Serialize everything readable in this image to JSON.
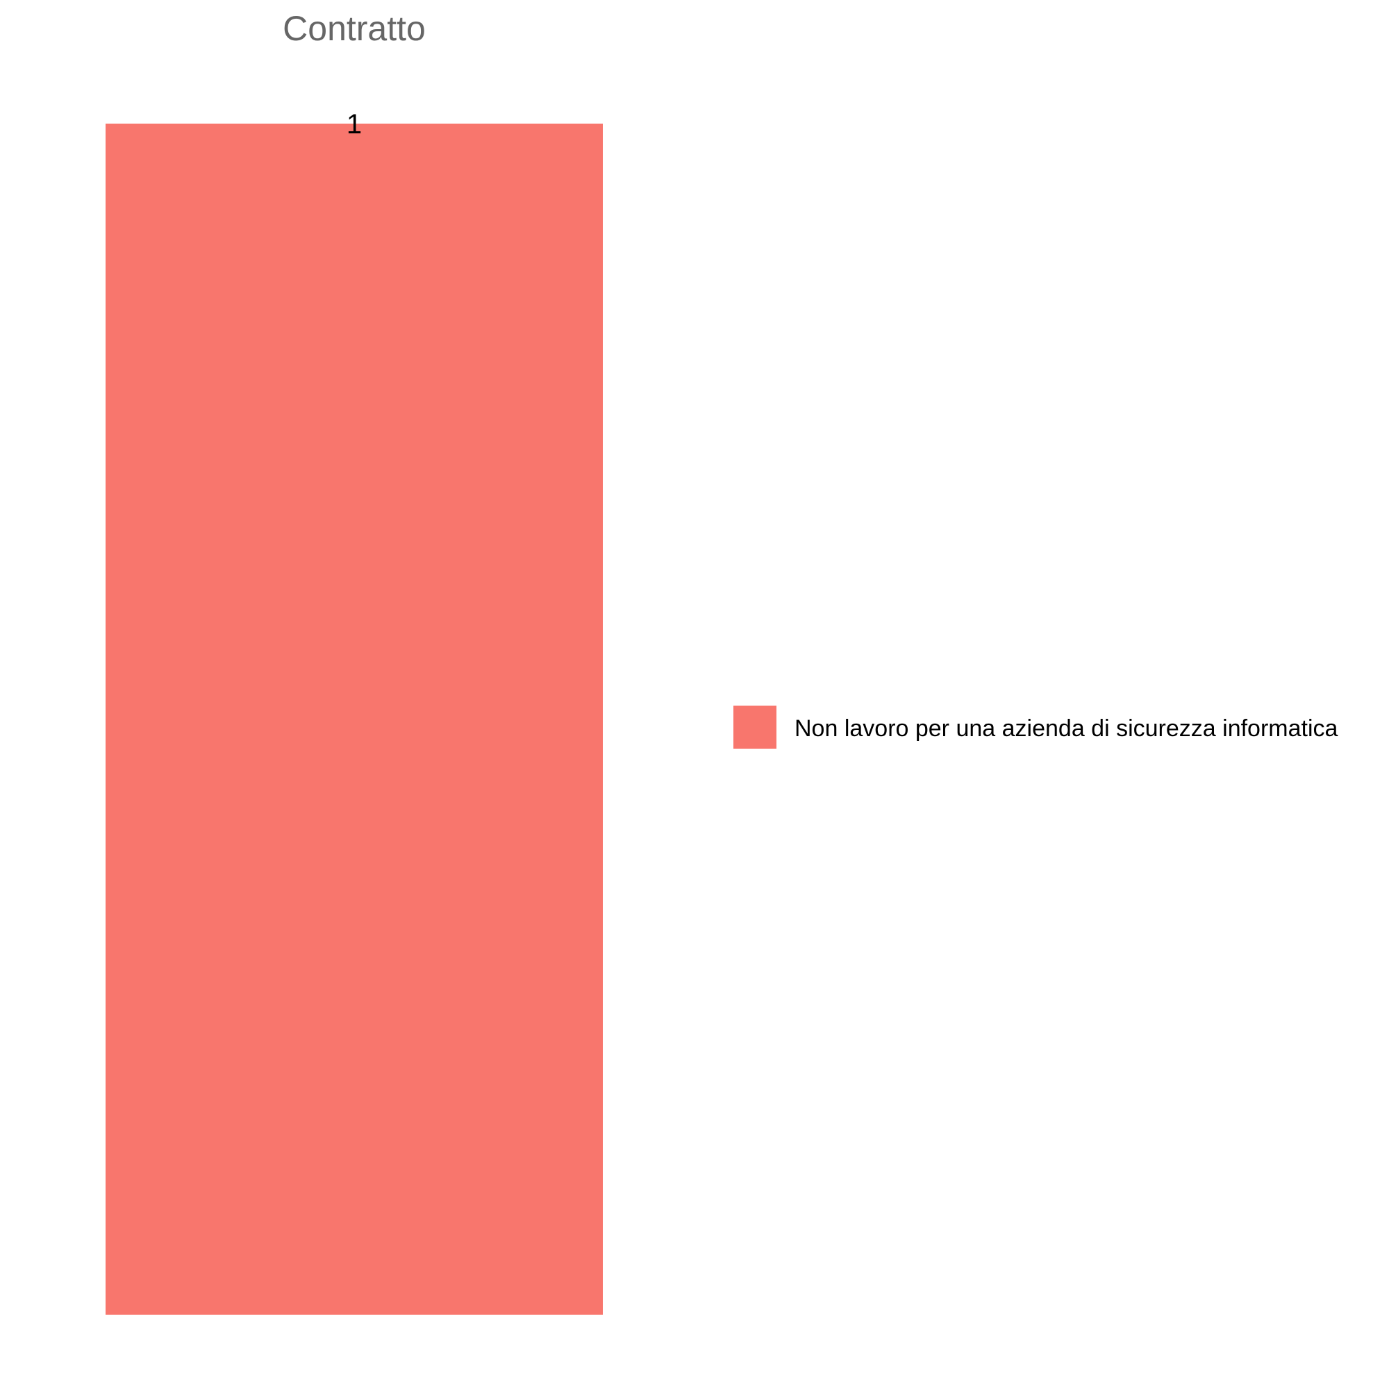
{
  "chart_data": {
    "type": "bar",
    "title": "Contratto",
    "categories": [
      ""
    ],
    "series": [
      {
        "name": "Non lavoro per una azienda di sicurezza informatica",
        "values": [
          1
        ],
        "color": "#F8766D"
      }
    ],
    "data_labels": [
      "1"
    ],
    "ylim": [
      0,
      1
    ],
    "grid": false,
    "axes_visible": false,
    "legend_placement": "right"
  }
}
